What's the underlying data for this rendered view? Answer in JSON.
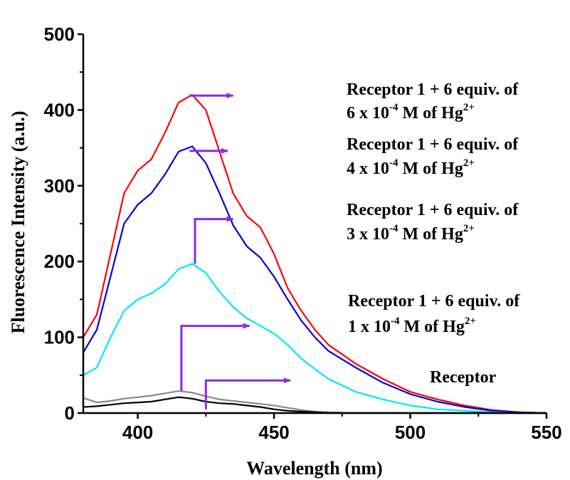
{
  "chart_data": {
    "type": "line",
    "title": "",
    "xlabel": "Wavelength (nm)",
    "ylabel": "Fluorescence Intensity (a.u.)",
    "xlim": [
      380,
      550
    ],
    "ylim": [
      0,
      500
    ],
    "x_ticks": [
      "400",
      "450",
      "500",
      "550"
    ],
    "y_ticks": [
      "0",
      "100",
      "200",
      "300",
      "400",
      "500"
    ],
    "grid": false,
    "legend": "none",
    "series": [
      {
        "color": "#ff0000",
        "x": [
          380,
          385,
          390,
          395,
          400,
          405,
          410,
          415,
          420,
          425,
          430,
          435,
          440,
          445,
          450,
          455,
          460,
          465,
          470,
          480,
          490,
          500,
          510,
          520,
          530,
          540,
          550
        ],
        "y": [
          100,
          130,
          210,
          290,
          320,
          335,
          370,
          410,
          420,
          400,
          345,
          290,
          260,
          245,
          210,
          165,
          135,
          110,
          90,
          65,
          45,
          28,
          18,
          10,
          4,
          1,
          0
        ]
      },
      {
        "color": "#0000dd",
        "x": [
          380,
          385,
          390,
          395,
          400,
          405,
          410,
          415,
          420,
          425,
          430,
          435,
          440,
          445,
          450,
          455,
          460,
          465,
          470,
          480,
          490,
          500,
          510,
          520,
          530,
          540,
          550
        ],
        "y": [
          80,
          110,
          180,
          250,
          275,
          290,
          315,
          345,
          352,
          330,
          290,
          248,
          220,
          205,
          180,
          150,
          122,
          100,
          82,
          60,
          40,
          25,
          15,
          8,
          3,
          1,
          0
        ]
      },
      {
        "color": "#00e5ff",
        "x": [
          380,
          385,
          390,
          395,
          400,
          405,
          410,
          415,
          420,
          425,
          430,
          435,
          440,
          445,
          450,
          455,
          460,
          465,
          470,
          480,
          490,
          500,
          510,
          520,
          530,
          540,
          550
        ],
        "y": [
          50,
          60,
          100,
          135,
          150,
          158,
          170,
          190,
          197,
          185,
          160,
          140,
          125,
          115,
          105,
          90,
          72,
          58,
          45,
          28,
          18,
          10,
          5,
          3,
          1,
          0,
          0
        ]
      },
      {
        "color": "#888888",
        "x": [
          380,
          385,
          390,
          395,
          400,
          405,
          410,
          415,
          420,
          425,
          430,
          435,
          440,
          445,
          450,
          455,
          460,
          465,
          470,
          480,
          490,
          500,
          510,
          520,
          530,
          540,
          550
        ],
        "y": [
          20,
          14,
          16,
          19,
          21,
          23,
          26,
          29,
          27,
          22,
          18,
          16,
          14,
          12,
          10,
          7,
          4,
          2,
          1,
          0,
          0,
          0,
          0,
          0,
          0,
          0,
          0
        ]
      },
      {
        "color": "#000000",
        "x": [
          380,
          385,
          390,
          395,
          400,
          405,
          410,
          415,
          420,
          425,
          430,
          435,
          440,
          445,
          450,
          455,
          460,
          465,
          470,
          480,
          490,
          500,
          510,
          520,
          530,
          540,
          550
        ],
        "y": [
          8,
          9,
          11,
          13,
          14,
          15,
          18,
          21,
          19,
          15,
          13,
          12,
          10,
          8,
          5,
          3,
          2,
          1,
          0,
          0,
          0,
          0,
          0,
          0,
          0,
          0,
          0
        ]
      }
    ],
    "annotations": [
      {
        "line1": "Receptor 1 + 6 equiv. of",
        "line2_pre": "6 x 10",
        "line2_exp": "-4",
        "line2_mid": " M of Hg",
        "line2_sup": "2+",
        "arrow_from": [
          419,
          419
        ],
        "arrow_to": [
          435,
          419
        ]
      },
      {
        "line1": "Receptor 1 + 6 equiv. of",
        "line2_pre": "4 x 10",
        "line2_exp": "-4",
        "line2_mid": " M of Hg",
        "line2_sup": "2+",
        "arrow_from": [
          419,
          346
        ],
        "arrow_to": [
          433,
          346
        ]
      },
      {
        "line1": "Receptor 1 + 6 equiv. of",
        "line2_pre": "3 x 10",
        "line2_exp": "-4",
        "line2_mid": " M of Hg",
        "line2_sup": "2+",
        "arrow_from": [
          421,
          197
        ],
        "arrow_corner": [
          421,
          256
        ],
        "arrow_to": [
          435,
          256
        ]
      },
      {
        "line1": "Receptor 1 + 6 equiv. of",
        "line2_pre": "1 x 10",
        "line2_exp": "-4",
        "line2_mid": " M of Hg",
        "line2_sup": "2+",
        "arrow_from": [
          416,
          29
        ],
        "arrow_corner": [
          416,
          115
        ],
        "arrow_to": [
          441,
          115
        ]
      },
      {
        "line1": "Receptor",
        "arrow_from": [
          425,
          5
        ],
        "arrow_corner": [
          425,
          43
        ],
        "arrow_to": [
          456,
          43
        ]
      }
    ],
    "arrow_color": "#8a2be2"
  }
}
